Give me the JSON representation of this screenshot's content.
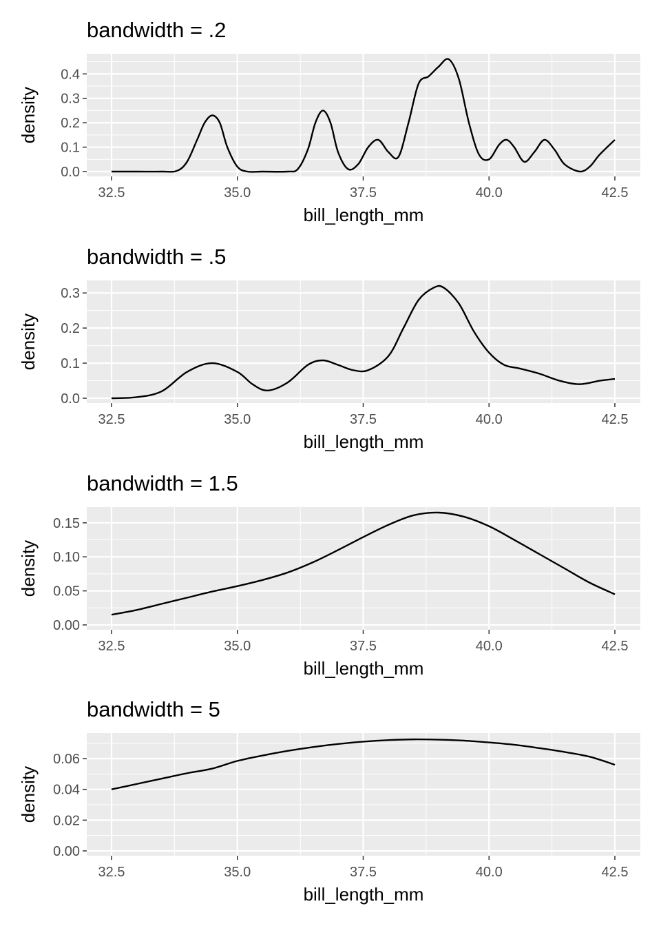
{
  "chart_data": [
    {
      "type": "line",
      "title": "bandwidth = .2",
      "xlabel": "bill_length_mm",
      "ylabel": "density",
      "xlim": [
        32.5,
        42.5
      ],
      "ylim": [
        0,
        0.46
      ],
      "xticks": [
        32.5,
        35.0,
        37.5,
        40.0,
        42.5
      ],
      "xtick_labels": [
        "32.5",
        "35.0",
        "37.5",
        "40.0",
        "42.5"
      ],
      "yticks": [
        0.0,
        0.1,
        0.2,
        0.3,
        0.4
      ],
      "ytick_labels": [
        "0.0",
        "0.1",
        "0.2",
        "0.3",
        "0.4"
      ],
      "grid": true,
      "series": [
        {
          "x": [
            32.5,
            33.0,
            33.5,
            33.8,
            34.0,
            34.2,
            34.35,
            34.5,
            34.65,
            34.8,
            35.0,
            35.2,
            35.5,
            36.0,
            36.2,
            36.4,
            36.55,
            36.7,
            36.85,
            37.0,
            37.2,
            37.4,
            37.6,
            37.8,
            38.0,
            38.2,
            38.4,
            38.6,
            38.8,
            39.0,
            39.2,
            39.4,
            39.6,
            39.8,
            40.0,
            40.2,
            40.35,
            40.5,
            40.7,
            40.9,
            41.1,
            41.3,
            41.5,
            41.8,
            42.0,
            42.2,
            42.5
          ],
          "y": [
            0.0,
            0.0,
            0.0,
            0.003,
            0.04,
            0.13,
            0.2,
            0.23,
            0.2,
            0.1,
            0.02,
            0.0,
            0.0,
            0.0,
            0.01,
            0.09,
            0.2,
            0.25,
            0.2,
            0.08,
            0.01,
            0.03,
            0.1,
            0.13,
            0.08,
            0.06,
            0.2,
            0.36,
            0.39,
            0.43,
            0.46,
            0.38,
            0.2,
            0.07,
            0.05,
            0.11,
            0.13,
            0.1,
            0.04,
            0.08,
            0.13,
            0.09,
            0.03,
            0.0,
            0.02,
            0.07,
            0.13
          ]
        }
      ]
    },
    {
      "type": "line",
      "title": "bandwidth = .5",
      "xlabel": "bill_length_mm",
      "ylabel": "density",
      "xlim": [
        32.5,
        42.5
      ],
      "ylim": [
        0,
        0.32
      ],
      "xticks": [
        32.5,
        35.0,
        37.5,
        40.0,
        42.5
      ],
      "xtick_labels": [
        "32.5",
        "35.0",
        "37.5",
        "40.0",
        "42.5"
      ],
      "yticks": [
        0.0,
        0.1,
        0.2,
        0.3
      ],
      "ytick_labels": [
        "0.0",
        "0.1",
        "0.2",
        "0.3"
      ],
      "grid": true,
      "series": [
        {
          "x": [
            32.5,
            33.0,
            33.5,
            34.0,
            34.5,
            35.0,
            35.3,
            35.6,
            36.0,
            36.4,
            36.7,
            37.0,
            37.3,
            37.6,
            38.0,
            38.3,
            38.6,
            38.9,
            39.1,
            39.4,
            39.7,
            40.0,
            40.3,
            40.6,
            41.0,
            41.4,
            41.8,
            42.2,
            42.5
          ],
          "y": [
            0.0,
            0.003,
            0.02,
            0.075,
            0.1,
            0.075,
            0.04,
            0.022,
            0.045,
            0.095,
            0.108,
            0.095,
            0.08,
            0.08,
            0.12,
            0.2,
            0.28,
            0.315,
            0.315,
            0.27,
            0.19,
            0.13,
            0.095,
            0.085,
            0.07,
            0.05,
            0.04,
            0.05,
            0.055
          ]
        }
      ]
    },
    {
      "type": "line",
      "title": "bandwidth = 1.5",
      "xlabel": "bill_length_mm",
      "ylabel": "density",
      "xlim": [
        32.5,
        42.5
      ],
      "ylim": [
        0,
        0.165
      ],
      "xticks": [
        32.5,
        35.0,
        37.5,
        40.0,
        42.5
      ],
      "xtick_labels": [
        "32.5",
        "35.0",
        "37.5",
        "40.0",
        "42.5"
      ],
      "yticks": [
        0.0,
        0.05,
        0.1,
        0.15
      ],
      "ytick_labels": [
        "0.00",
        "0.05",
        "0.10",
        "0.15"
      ],
      "grid": true,
      "series": [
        {
          "x": [
            32.5,
            33.0,
            33.5,
            34.0,
            34.5,
            35.0,
            35.5,
            36.0,
            36.5,
            37.0,
            37.5,
            38.0,
            38.5,
            39.0,
            39.5,
            40.0,
            40.5,
            41.0,
            41.5,
            42.0,
            42.5
          ],
          "y": [
            0.015,
            0.022,
            0.031,
            0.04,
            0.049,
            0.057,
            0.066,
            0.077,
            0.092,
            0.11,
            0.129,
            0.147,
            0.161,
            0.165,
            0.159,
            0.145,
            0.125,
            0.104,
            0.083,
            0.062,
            0.045
          ]
        }
      ]
    },
    {
      "type": "line",
      "title": "bandwidth = 5",
      "xlabel": "bill_length_mm",
      "ylabel": "density",
      "xlim": [
        32.5,
        42.5
      ],
      "ylim": [
        0,
        0.073
      ],
      "xticks": [
        32.5,
        35.0,
        37.5,
        40.0,
        42.5
      ],
      "xtick_labels": [
        "32.5",
        "35.0",
        "37.5",
        "40.0",
        "42.5"
      ],
      "yticks": [
        0.0,
        0.02,
        0.04,
        0.06
      ],
      "ytick_labels": [
        "0.00",
        "0.02",
        "0.04",
        "0.06"
      ],
      "grid": true,
      "series": [
        {
          "x": [
            32.5,
            33.0,
            33.5,
            34.0,
            34.5,
            35.0,
            35.5,
            36.0,
            36.5,
            37.0,
            37.5,
            38.0,
            38.5,
            39.0,
            39.5,
            40.0,
            40.5,
            41.0,
            41.5,
            42.0,
            42.5
          ],
          "y": [
            0.04,
            0.0435,
            0.047,
            0.0505,
            0.0535,
            0.0585,
            0.062,
            0.065,
            0.0675,
            0.0695,
            0.071,
            0.072,
            0.0725,
            0.0723,
            0.0717,
            0.0705,
            0.069,
            0.0668,
            0.0643,
            0.0612,
            0.056
          ]
        }
      ]
    }
  ]
}
